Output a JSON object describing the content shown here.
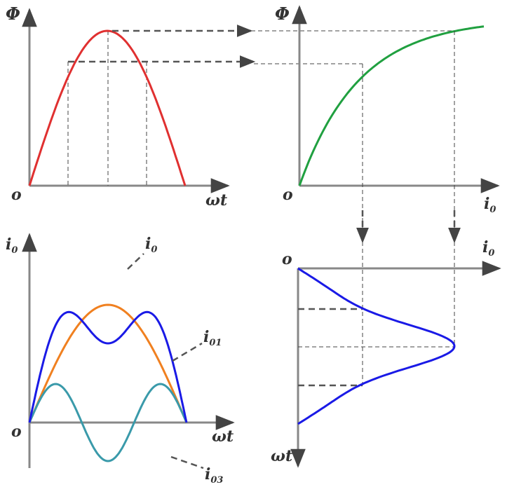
{
  "labels": {
    "phi_top_left": "Φ",
    "origin_top_left": "o",
    "wt_top_left": "ωt",
    "phi_top_right": "Φ",
    "origin_top_right": "o",
    "i0_top_right": "i",
    "i0_top_right_sub": "0",
    "i0_bottom_left": "i",
    "i0_bottom_left_sub": "0",
    "origin_bottom_left": "o",
    "wt_bottom_left": "ωt",
    "i0_curve": "i",
    "i0_curve_sub": "0",
    "i01_curve": "i",
    "i01_curve_sub": "01",
    "i03_curve": "i",
    "i03_curve_sub": "03",
    "origin_bottom_right": "o",
    "i0_bottom_right": "i",
    "i0_bottom_right_sub": "0",
    "wt_bottom_right": "ωt"
  },
  "colors": {
    "flux": "#e03030",
    "magnetization": "#20a040",
    "current_total": "#1a1ae6",
    "fundamental": "#f08020",
    "third_harmonic": "#3a9aaa",
    "axis": "#888888"
  }
}
